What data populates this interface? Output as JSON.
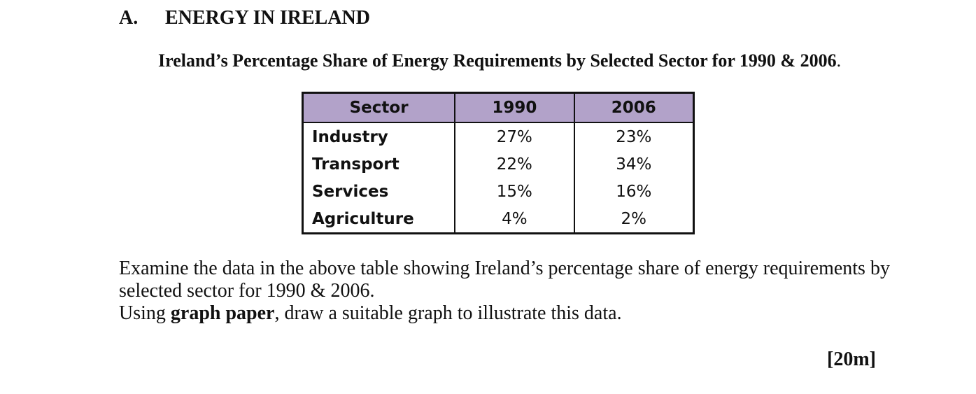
{
  "section": {
    "letter": "A.",
    "title": "ENERGY IN IRELAND"
  },
  "caption": {
    "text": "Ireland’s Percentage Share of Energy Requirements by Selected Sector for 1990 & 2006",
    "period": "."
  },
  "table": {
    "headers": [
      "Sector",
      "1990",
      "2006"
    ],
    "rows": [
      {
        "sector": "Industry",
        "y1990": "27%",
        "y2006": "23%"
      },
      {
        "sector": "Transport",
        "y1990": "22%",
        "y2006": "34%"
      },
      {
        "sector": "Services",
        "y1990": "15%",
        "y2006": "16%"
      },
      {
        "sector": "Agriculture",
        "y1990": "4%",
        "y2006": "2%"
      }
    ]
  },
  "instructions": {
    "line1": "Examine the data in the above table showing Ireland’s percentage share of energy requirements by selected sector for 1990 & 2006.",
    "line2_prefix": "Using ",
    "line2_bold": "graph paper",
    "line2_suffix": ", draw a suitable graph to illustrate this data."
  },
  "marks": "[20m]"
}
